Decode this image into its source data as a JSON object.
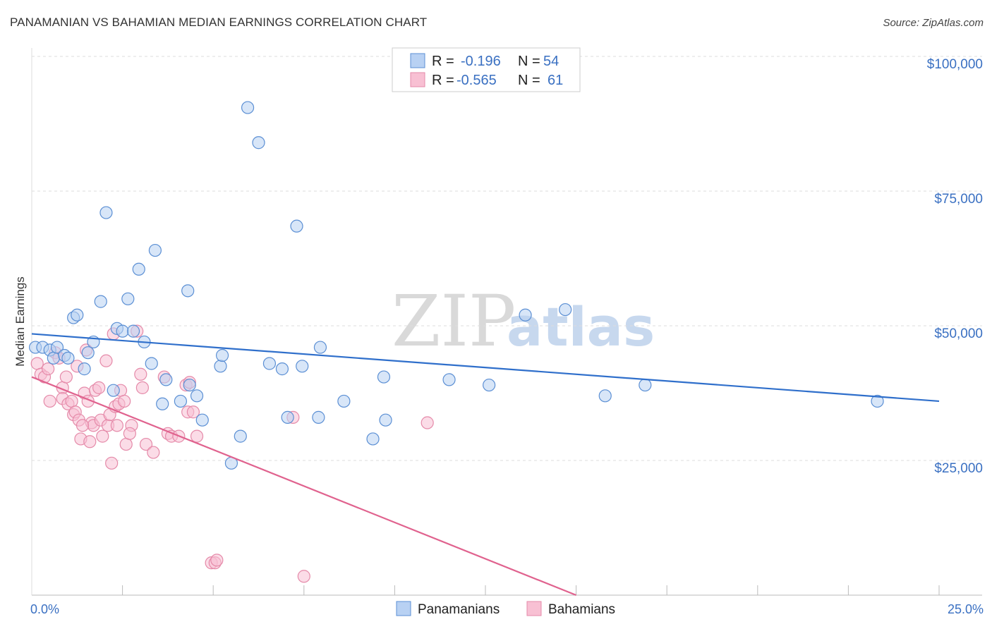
{
  "header": {
    "title": "PANAMANIAN VS BAHAMIAN MEDIAN EARNINGS CORRELATION CHART",
    "source": "Source: ZipAtlas.com"
  },
  "watermark": {
    "zip": "ZIP",
    "atlas": "atlas"
  },
  "colors": {
    "blue_fill": "#b8d1f3",
    "blue_stroke": "#5b8fd4",
    "blue_line": "#2f6fcb",
    "pink_fill": "#f8c0d3",
    "pink_stroke": "#e58aa9",
    "pink_line": "#e0628e",
    "grid": "#dddddd",
    "tick_label": "#3a70c2"
  },
  "legend": {
    "rows": [
      {
        "r_label": "R =",
        "r_value": "-0.196",
        "n_label": "N =",
        "n_value": "54"
      },
      {
        "r_label": "R =",
        "r_value": "-0.565",
        "n_label": "N =",
        "n_value": "61"
      }
    ]
  },
  "bottom_legend": [
    "Panamanians",
    "Bahamians"
  ],
  "chart_data": {
    "type": "scatter",
    "title": "PANAMANIAN VS BAHAMIAN MEDIAN EARNINGS CORRELATION CHART",
    "xlabel": "",
    "ylabel": "Median Earnings",
    "xlim": [
      0,
      25
    ],
    "ylim": [
      0,
      102000
    ],
    "x_tick_labels": [
      "0.0%",
      "25.0%"
    ],
    "y_ticks": [
      25000,
      50000,
      75000,
      100000
    ],
    "y_tick_labels": [
      "$25,000",
      "$50,000",
      "$75,000",
      "$100,000"
    ],
    "grid": true,
    "series": [
      {
        "name": "Panamanians",
        "r": -0.196,
        "n": 54,
        "trend": {
          "x": [
            0,
            25
          ],
          "y": [
            48500,
            36000
          ]
        },
        "points": [
          [
            0.1,
            46000
          ],
          [
            0.3,
            46000
          ],
          [
            0.5,
            45500
          ],
          [
            0.6,
            44000
          ],
          [
            0.7,
            46000
          ],
          [
            0.9,
            44500
          ],
          [
            1.0,
            44000
          ],
          [
            1.15,
            51500
          ],
          [
            1.25,
            52000
          ],
          [
            1.45,
            42000
          ],
          [
            1.55,
            45000
          ],
          [
            1.7,
            47000
          ],
          [
            1.9,
            54500
          ],
          [
            2.05,
            71000
          ],
          [
            2.25,
            38000
          ],
          [
            2.35,
            49500
          ],
          [
            2.5,
            49000
          ],
          [
            2.65,
            55000
          ],
          [
            2.8,
            49000
          ],
          [
            2.95,
            60500
          ],
          [
            3.1,
            47000
          ],
          [
            3.3,
            43000
          ],
          [
            3.4,
            64000
          ],
          [
            3.6,
            35500
          ],
          [
            3.7,
            40000
          ],
          [
            4.1,
            36000
          ],
          [
            4.3,
            56500
          ],
          [
            4.35,
            39000
          ],
          [
            4.55,
            37000
          ],
          [
            4.7,
            32500
          ],
          [
            5.2,
            42500
          ],
          [
            5.25,
            44500
          ],
          [
            5.5,
            24500
          ],
          [
            5.75,
            29500
          ],
          [
            5.95,
            90500
          ],
          [
            6.25,
            84000
          ],
          [
            6.55,
            43000
          ],
          [
            6.9,
            42000
          ],
          [
            7.05,
            33000
          ],
          [
            7.3,
            68500
          ],
          [
            7.45,
            42500
          ],
          [
            7.9,
            33000
          ],
          [
            7.95,
            46000
          ],
          [
            8.6,
            36000
          ],
          [
            9.4,
            29000
          ],
          [
            9.7,
            40500
          ],
          [
            9.75,
            32500
          ],
          [
            11.5,
            40000
          ],
          [
            12.6,
            39000
          ],
          [
            13.6,
            52000
          ],
          [
            14.7,
            53000
          ],
          [
            15.8,
            37000
          ],
          [
            16.9,
            39000
          ],
          [
            23.3,
            36000
          ]
        ]
      },
      {
        "name": "Bahamians",
        "r": -0.565,
        "n": 61,
        "trend": {
          "x": [
            0,
            15
          ],
          "y": [
            40500,
            0
          ]
        },
        "points": [
          [
            0.15,
            43000
          ],
          [
            0.25,
            41000
          ],
          [
            0.35,
            40500
          ],
          [
            0.45,
            42000
          ],
          [
            0.5,
            36000
          ],
          [
            0.65,
            45000
          ],
          [
            0.75,
            44000
          ],
          [
            0.85,
            38500
          ],
          [
            0.85,
            36500
          ],
          [
            0.95,
            40500
          ],
          [
            1.0,
            35500
          ],
          [
            1.1,
            36000
          ],
          [
            1.15,
            33500
          ],
          [
            1.2,
            34000
          ],
          [
            1.25,
            42500
          ],
          [
            1.3,
            32500
          ],
          [
            1.35,
            29000
          ],
          [
            1.45,
            37500
          ],
          [
            1.5,
            45500
          ],
          [
            1.55,
            36000
          ],
          [
            1.6,
            28500
          ],
          [
            1.65,
            32000
          ],
          [
            1.7,
            31500
          ],
          [
            1.75,
            38000
          ],
          [
            1.85,
            38500
          ],
          [
            1.9,
            32500
          ],
          [
            1.95,
            29500
          ],
          [
            2.05,
            43500
          ],
          [
            2.1,
            31500
          ],
          [
            2.15,
            33500
          ],
          [
            2.2,
            24500
          ],
          [
            2.25,
            48500
          ],
          [
            2.3,
            35000
          ],
          [
            2.35,
            31500
          ],
          [
            2.4,
            35500
          ],
          [
            2.45,
            38000
          ],
          [
            2.55,
            36000
          ],
          [
            2.6,
            28000
          ],
          [
            2.75,
            31500
          ],
          [
            2.7,
            30000
          ],
          [
            2.9,
            49000
          ],
          [
            3.05,
            38500
          ],
          [
            3.15,
            28000
          ],
          [
            3.35,
            26500
          ],
          [
            3.65,
            40500
          ],
          [
            3.75,
            30000
          ],
          [
            3.85,
            29500
          ],
          [
            4.05,
            29500
          ],
          [
            4.25,
            39000
          ],
          [
            4.3,
            34000
          ],
          [
            4.35,
            39500
          ],
          [
            4.55,
            29500
          ],
          [
            4.45,
            34000
          ],
          [
            4.95,
            6000
          ],
          [
            5.05,
            6000
          ],
          [
            5.1,
            6500
          ],
          [
            7.2,
            33000
          ],
          [
            7.5,
            3500
          ],
          [
            10.9,
            32000
          ],
          [
            3.0,
            41000
          ],
          [
            1.4,
            31500
          ]
        ]
      }
    ]
  }
}
